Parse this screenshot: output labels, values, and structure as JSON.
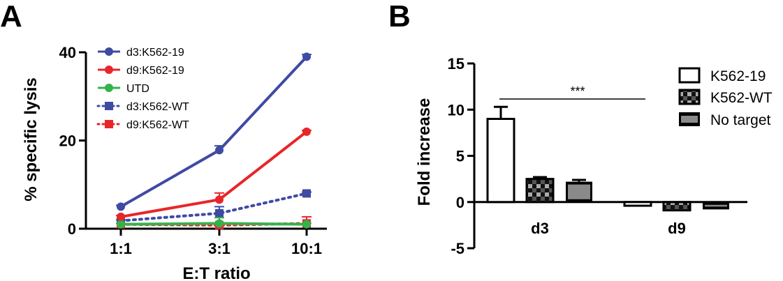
{
  "chart_data": [
    {
      "panel": "A",
      "type": "line",
      "xlabel": "E:T ratio",
      "ylabel": "% specific lysis",
      "categories": [
        "1:1",
        "3:1",
        "10:1"
      ],
      "ylim": [
        0,
        40
      ],
      "yticks": [
        0,
        20,
        40
      ],
      "series": [
        {
          "name": "d3:K562-19",
          "color": "#3f4aa3",
          "style": "solid",
          "marker": "circle",
          "values": [
            5,
            17.8,
            39
          ],
          "errors": [
            0.3,
            1.0,
            0.5
          ]
        },
        {
          "name": "d9:K562-19",
          "color": "#e8262a",
          "style": "solid",
          "marker": "circle",
          "values": [
            2.7,
            6.6,
            22
          ],
          "errors": [
            0.3,
            1.5,
            0.3
          ]
        },
        {
          "name": "UTD",
          "color": "#34b34a",
          "style": "solid",
          "marker": "circle",
          "values": [
            1.0,
            1.2,
            1.0
          ],
          "errors": [
            0.2,
            1.3,
            0.2
          ]
        },
        {
          "name": "d3:K562-WT",
          "color": "#3f4aa3",
          "style": "dotted",
          "marker": "square",
          "values": [
            1.8,
            3.5,
            8
          ],
          "errors": [
            0.2,
            1.5,
            0.3
          ]
        },
        {
          "name": "d9:K562-WT",
          "color": "#e8262a",
          "style": "dotted",
          "marker": "square",
          "values": [
            1.0,
            0.8,
            1.2
          ],
          "errors": [
            0.2,
            0.2,
            1.5
          ]
        }
      ]
    },
    {
      "panel": "B",
      "type": "bar",
      "xlabel": "",
      "ylabel": "Fold increase",
      "categories": [
        "d3",
        "d9"
      ],
      "ylim": [
        -5,
        15
      ],
      "yticks": [
        -5,
        0,
        5,
        10,
        15
      ],
      "series": [
        {
          "name": "K562-19",
          "pattern": "white",
          "values": [
            9,
            -0.4
          ],
          "errors": [
            1.3,
            0.1
          ]
        },
        {
          "name": "K562-WT",
          "pattern": "checker",
          "values": [
            2.5,
            -0.9
          ],
          "errors": [
            0.2,
            0.1
          ]
        },
        {
          "name": "No target",
          "pattern": "gray",
          "values": [
            2.2,
            -0.8
          ],
          "errors": [
            0.2,
            0.1
          ]
        }
      ],
      "annotation": "***"
    }
  ],
  "panels": {
    "a_letter": "A",
    "b_letter": "B"
  }
}
